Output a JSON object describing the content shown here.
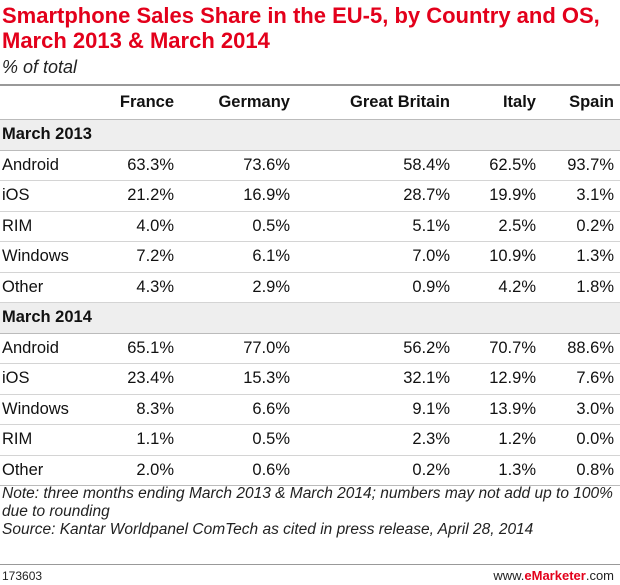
{
  "header": {
    "title": "Smartphone Sales Share in the EU-5, by Country and OS, March 2013 & March 2014",
    "subtitle": "% of total"
  },
  "chart_data": {
    "type": "table",
    "title": "Smartphone Sales Share in the EU-5, by Country and OS, March 2013 & March 2014",
    "subtitle": "% of total",
    "columns": [
      "France",
      "Germany",
      "Great Britain",
      "Italy",
      "Spain"
    ],
    "sections": [
      {
        "label": "March 2013",
        "rows": [
          {
            "label": "Android",
            "values": [
              "63.3%",
              "73.6%",
              "58.4%",
              "62.5%",
              "93.7%"
            ]
          },
          {
            "label": "iOS",
            "values": [
              "21.2%",
              "16.9%",
              "28.7%",
              "19.9%",
              "3.1%"
            ]
          },
          {
            "label": "RIM",
            "values": [
              "4.0%",
              "0.5%",
              "5.1%",
              "2.5%",
              "0.2%"
            ]
          },
          {
            "label": "Windows",
            "values": [
              "7.2%",
              "6.1%",
              "7.0%",
              "10.9%",
              "1.3%"
            ]
          },
          {
            "label": "Other",
            "values": [
              "4.3%",
              "2.9%",
              "0.9%",
              "4.2%",
              "1.8%"
            ]
          }
        ]
      },
      {
        "label": "March 2014",
        "rows": [
          {
            "label": "Android",
            "values": [
              "65.1%",
              "77.0%",
              "56.2%",
              "70.7%",
              "88.6%"
            ]
          },
          {
            "label": "iOS",
            "values": [
              "23.4%",
              "15.3%",
              "32.1%",
              "12.9%",
              "7.6%"
            ]
          },
          {
            "label": "Windows",
            "values": [
              "8.3%",
              "6.6%",
              "9.1%",
              "13.9%",
              "3.0%"
            ]
          },
          {
            "label": "RIM",
            "values": [
              "1.1%",
              "0.5%",
              "2.3%",
              "1.2%",
              "0.0%"
            ]
          },
          {
            "label": "Other",
            "values": [
              "2.0%",
              "0.6%",
              "0.2%",
              "1.3%",
              "0.8%"
            ]
          }
        ]
      }
    ]
  },
  "notes": {
    "note": "Note: three months ending March 2013 & March 2014; numbers may not add up to 100% due to rounding",
    "source": "Source: Kantar Worldpanel ComTech as cited in press release, April 28, 2014"
  },
  "footer": {
    "id": "173603",
    "brand_prefix": "www.",
    "brand_mark": "eMarketer",
    "brand_suffix": ".com"
  },
  "colors": {
    "title": "#e3001b",
    "brand": "#e3001b"
  }
}
